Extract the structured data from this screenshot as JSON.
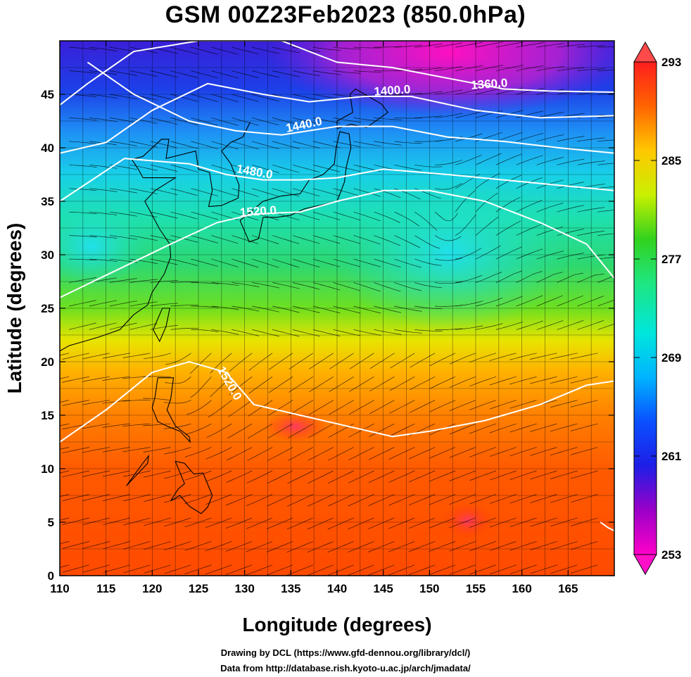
{
  "title": "GSM 00Z23Feb2023 (850.0hPa)",
  "chart_data": {
    "type": "heatmap",
    "title": "GSM 00Z23Feb2023 (850.0hPa)",
    "xlabel": "Longitude (degrees)",
    "ylabel": "Latitude  (degrees)",
    "xlim": [
      110,
      170
    ],
    "ylim": [
      0,
      50
    ],
    "x_ticks": [
      "110",
      "115",
      "120",
      "125",
      "130",
      "135",
      "140",
      "145",
      "150",
      "155",
      "160",
      "165"
    ],
    "y_ticks": [
      "0",
      "5",
      "10",
      "15",
      "20",
      "25",
      "30",
      "35",
      "40",
      "45"
    ],
    "colorbar": {
      "min": 253,
      "max": 293,
      "labels": [
        "293",
        "285",
        "277",
        "269",
        "261",
        "253"
      ],
      "colors": [
        "#ff00c8",
        "#9b00c8",
        "#1e1ee6",
        "#0a50ff",
        "#00d7ff",
        "#1ee696",
        "#32d21e",
        "#c8f000",
        "#ffd700",
        "#ff9600",
        "#ff3200",
        "#ff1e1e"
      ]
    },
    "contours": [
      {
        "label": "1360.0",
        "lon": 156.5,
        "lat": 45.6
      },
      {
        "label": "1400.0",
        "lon": 146.0,
        "lat": 45.0
      },
      {
        "label": "1440.0",
        "lon": 136.5,
        "lat": 41.8
      },
      {
        "label": "1480.0",
        "lon": 131.0,
        "lat": 37.4
      },
      {
        "label": "1520.0",
        "lon": 131.5,
        "lat": 33.7
      },
      {
        "label": "1520.0",
        "lon": 128.0,
        "lat": 17.8
      }
    ]
  },
  "credits": {
    "line1": "Drawing by DCL (https://www.gfd-dennou.org/library/dcl/)",
    "line2": "Data from http://database.rish.kyoto-u.ac.jp/arch/jmadata/"
  }
}
